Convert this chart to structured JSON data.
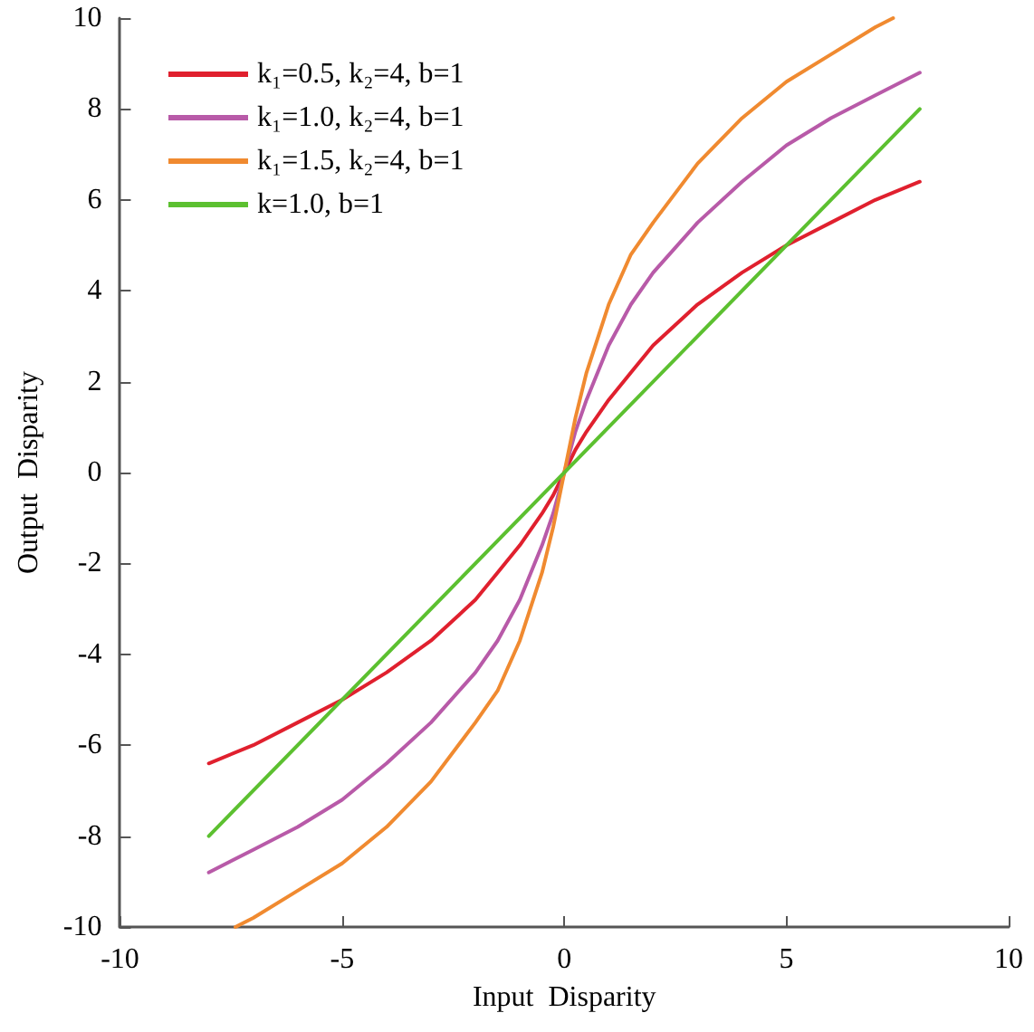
{
  "chart_data": {
    "type": "line",
    "xlabel": "Input  Disparity",
    "ylabel": "Output  Disparity",
    "xlim": [
      -10,
      10
    ],
    "xticks": [
      -10,
      -5,
      0,
      5,
      10
    ],
    "ylim": [
      -10,
      10
    ],
    "yticks": [
      -10,
      -8,
      -6,
      -4,
      -2,
      0,
      2,
      4,
      6,
      8,
      10
    ],
    "grid": false,
    "legend": "top left",
    "marker": "none",
    "line_style": "solid",
    "series": [
      {
        "name": "k₁=0.5, k₂=4, b=1",
        "color": "#e0202e",
        "x": [
          -8,
          -7,
          -6,
          -5,
          -4,
          -3,
          -2,
          -1.5,
          -1,
          -0.5,
          -0.25,
          0,
          0.25,
          0.5,
          1,
          1.5,
          2,
          3,
          4,
          5,
          6,
          7,
          8
        ],
        "values": [
          -6.4,
          -6.0,
          -5.5,
          -5.0,
          -4.4,
          -3.7,
          -2.8,
          -2.2,
          -1.6,
          -0.9,
          -0.5,
          0,
          0.5,
          0.9,
          1.6,
          2.2,
          2.8,
          3.7,
          4.4,
          5.0,
          5.5,
          6.0,
          6.4
        ]
      },
      {
        "name": "k₁=1.0, k₂=4, b=1",
        "color": "#b85aa8",
        "x": [
          -8,
          -7,
          -6,
          -5,
          -4,
          -3,
          -2,
          -1.5,
          -1,
          -0.5,
          -0.25,
          0,
          0.25,
          0.5,
          1,
          1.5,
          2,
          3,
          4,
          5,
          6,
          7,
          8
        ],
        "values": [
          -8.8,
          -8.3,
          -7.8,
          -7.2,
          -6.4,
          -5.5,
          -4.4,
          -3.7,
          -2.8,
          -1.6,
          -0.9,
          0,
          0.9,
          1.6,
          2.8,
          3.7,
          4.4,
          5.5,
          6.4,
          7.2,
          7.8,
          8.3,
          8.8
        ]
      },
      {
        "name": "k₁=1.5, k₂=4, b=1",
        "color": "#f08a30",
        "x": [
          -7.4,
          -7,
          -6,
          -5,
          -4,
          -3,
          -2,
          -1.5,
          -1,
          -0.5,
          -0.25,
          0,
          0.25,
          0.5,
          1,
          1.5,
          2,
          3,
          4,
          5,
          6,
          7,
          7.4
        ],
        "values": [
          -10,
          -9.8,
          -9.2,
          -8.6,
          -7.8,
          -6.8,
          -5.5,
          -4.8,
          -3.7,
          -2.2,
          -1.2,
          0,
          1.2,
          2.2,
          3.7,
          4.8,
          5.5,
          6.8,
          7.8,
          8.6,
          9.2,
          9.8,
          10
        ]
      },
      {
        "name": "k=1.0, b=1",
        "color": "#5cc030",
        "x": [
          -8,
          8
        ],
        "values": [
          -8,
          8
        ]
      }
    ]
  }
}
